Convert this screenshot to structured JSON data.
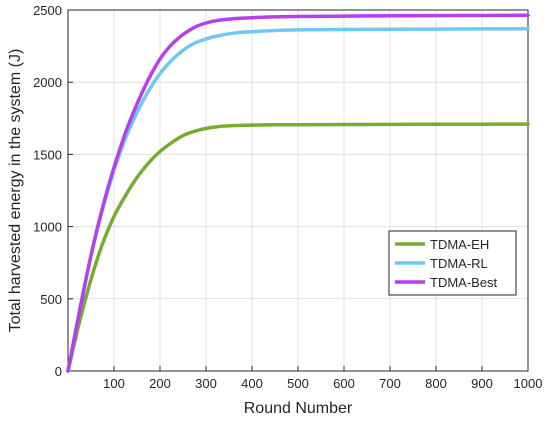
{
  "chart_data": {
    "type": "line",
    "title": "",
    "xlabel": "Round Number",
    "ylabel": "Total harvested energy in the system (J)",
    "xlim": [
      0,
      1000
    ],
    "ylim": [
      0,
      2500
    ],
    "xticks": [
      100,
      200,
      300,
      400,
      500,
      600,
      700,
      800,
      900,
      1000
    ],
    "yticks": [
      0,
      500,
      1000,
      1500,
      2000,
      2500
    ],
    "grid": true,
    "legend_position": "lower-right",
    "series": [
      {
        "name": "TDMA-EH",
        "color": "#77AC30",
        "x": [
          0,
          25,
          50,
          75,
          100,
          125,
          150,
          175,
          200,
          225,
          250,
          275,
          300,
          325,
          350,
          375,
          400,
          450,
          500,
          600,
          700,
          800,
          900,
          1000
        ],
        "y": [
          0,
          340,
          635,
          880,
          1070,
          1215,
          1340,
          1440,
          1520,
          1580,
          1630,
          1660,
          1680,
          1692,
          1698,
          1701,
          1703,
          1705,
          1706,
          1707,
          1708,
          1709,
          1709,
          1710
        ]
      },
      {
        "name": "TDMA-RL",
        "color": "#6FC8F0",
        "x": [
          0,
          25,
          50,
          75,
          100,
          125,
          150,
          175,
          200,
          225,
          250,
          275,
          300,
          325,
          350,
          375,
          400,
          450,
          500,
          600,
          700,
          800,
          900,
          1000
        ],
        "y": [
          0,
          420,
          800,
          1120,
          1390,
          1610,
          1790,
          1940,
          2060,
          2150,
          2220,
          2270,
          2300,
          2320,
          2335,
          2345,
          2350,
          2358,
          2362,
          2365,
          2367,
          2368,
          2369,
          2370
        ]
      },
      {
        "name": "TDMA-Best",
        "color": "#B53FEE",
        "x": [
          0,
          25,
          50,
          75,
          100,
          125,
          150,
          175,
          200,
          225,
          250,
          275,
          300,
          325,
          350,
          375,
          400,
          450,
          500,
          600,
          700,
          800,
          900,
          1000
        ],
        "y": [
          0,
          410,
          800,
          1130,
          1410,
          1650,
          1850,
          2020,
          2160,
          2260,
          2330,
          2380,
          2410,
          2427,
          2437,
          2443,
          2447,
          2452,
          2455,
          2458,
          2460,
          2461,
          2462,
          2463
        ]
      }
    ]
  }
}
